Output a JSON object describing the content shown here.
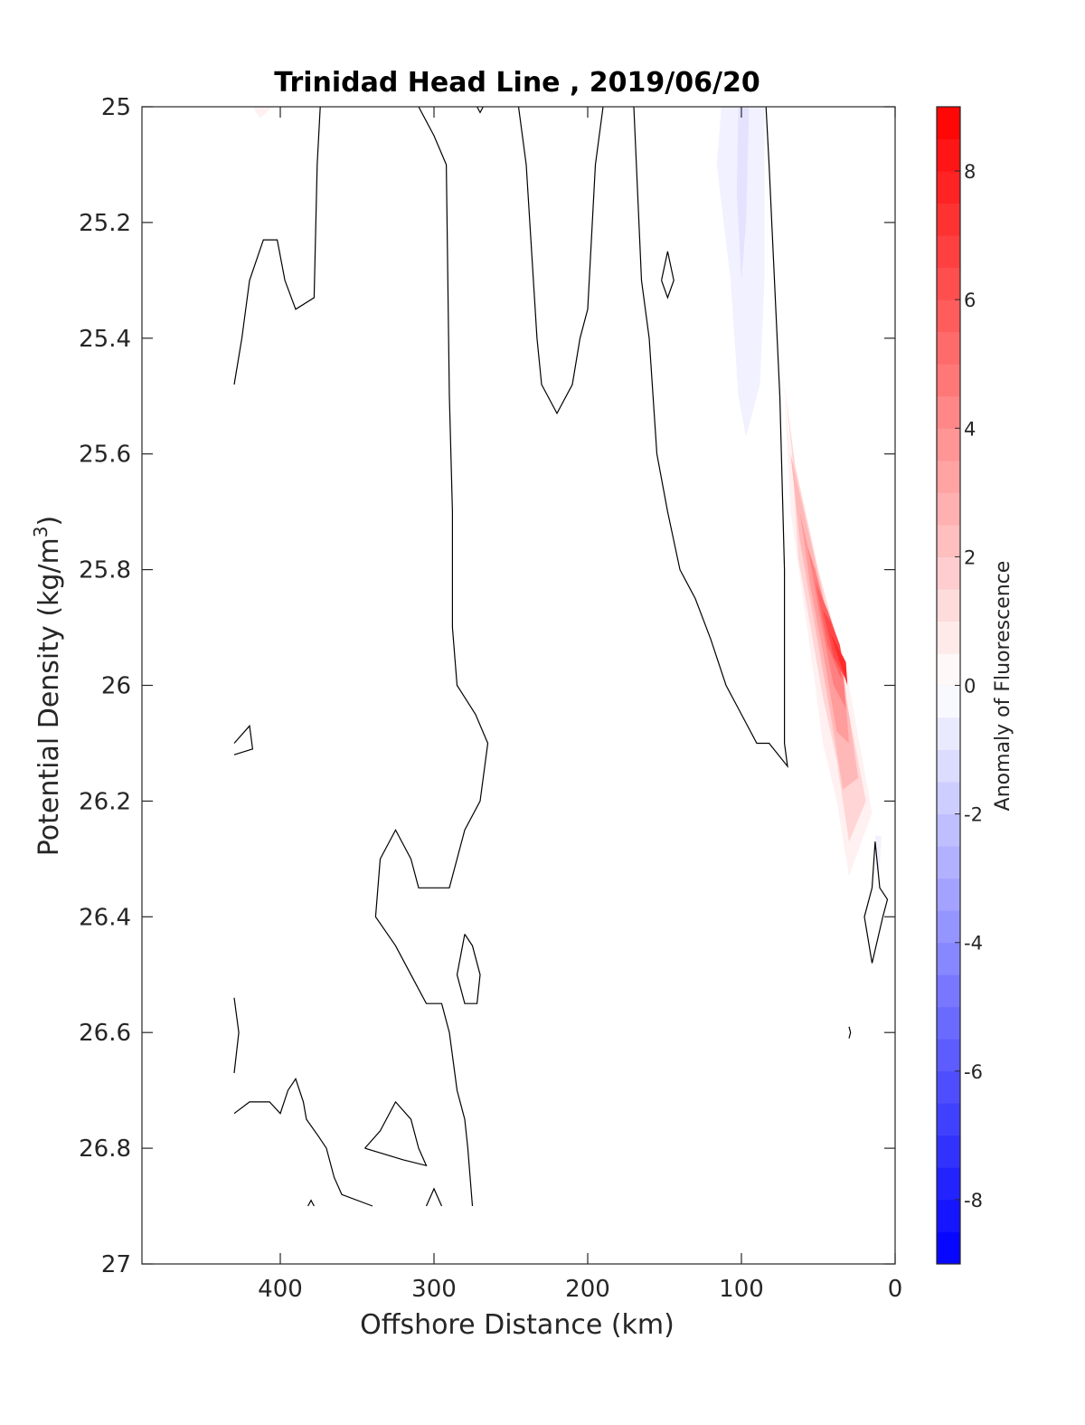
{
  "chart_data": {
    "type": "heatmap",
    "title": "Trinidad Head Line , 2019/06/20",
    "xlabel": "Offshore Distance (km)",
    "ylabel": "Potential Density (kg/m³)",
    "ylabel_main": "Potential Density (kg/m",
    "ylabel_sup": "3",
    "ylabel_close": ")",
    "xlim": [
      490,
      0
    ],
    "x_reversed": true,
    "ylim": [
      25,
      27
    ],
    "y_reversed": true,
    "x_ticks": [
      400,
      300,
      200,
      100,
      0
    ],
    "x_tick_labels": [
      "400",
      "300",
      "200",
      "100",
      "0"
    ],
    "y_ticks": [
      25,
      25.2,
      25.4,
      25.6,
      25.8,
      26,
      26.2,
      26.4,
      26.6,
      26.8,
      27
    ],
    "y_tick_labels": [
      "25",
      "25.2",
      "25.4",
      "25.6",
      "25.8",
      "26",
      "26.2",
      "26.4",
      "26.6",
      "26.8",
      "27"
    ],
    "colorbar": {
      "label": "Anomaly of Fluorescence",
      "range": [
        -9,
        9
      ],
      "step": 0.5,
      "ticks": [
        -8,
        -6,
        -4,
        -2,
        0,
        2,
        4,
        6,
        8
      ],
      "tick_labels": [
        "-8",
        "-6",
        "-4",
        "-2",
        "0",
        "2",
        "4",
        "6",
        "8"
      ],
      "colormap": "blue-white-red",
      "neg_color": "#0000ff",
      "pos_color": "#ff0000",
      "zero_color": "#ffffff"
    },
    "grid": false,
    "filled_regions": [
      {
        "level": 0.5,
        "points": [
          [
            418,
            25
          ],
          [
            405,
            25
          ],
          [
            413,
            25.02
          ]
        ]
      },
      {
        "level": -0.5,
        "points": [
          [
            113,
            25
          ],
          [
            85,
            25
          ],
          [
            85,
            25.3
          ],
          [
            88,
            25.48
          ],
          [
            97,
            25.57
          ],
          [
            102,
            25.5
          ],
          [
            107,
            25.3
          ],
          [
            116,
            25.1
          ]
        ]
      },
      {
        "level": -1.0,
        "points": [
          [
            102,
            25
          ],
          [
            95,
            25
          ],
          [
            97,
            25.2
          ],
          [
            100,
            25.3
          ],
          [
            103,
            25.15
          ]
        ]
      },
      {
        "level": 0.5,
        "points": [
          [
            78,
            25.33
          ],
          [
            72,
            25.5
          ],
          [
            68,
            25.7
          ],
          [
            60,
            25.85
          ],
          [
            52,
            26.0
          ],
          [
            47,
            26.1
          ],
          [
            38,
            26.2
          ],
          [
            30,
            26.33
          ],
          [
            15,
            26.22
          ],
          [
            30,
            26.0
          ],
          [
            33,
            25.95
          ],
          [
            48,
            25.85
          ],
          [
            63,
            25.67
          ],
          [
            70,
            25.55
          ]
        ]
      },
      {
        "level": 1.5,
        "points": [
          [
            72,
            25.48
          ],
          [
            67,
            25.6
          ],
          [
            63,
            25.78
          ],
          [
            55,
            25.9
          ],
          [
            47,
            26.02
          ],
          [
            38,
            26.13
          ],
          [
            30,
            26.27
          ],
          [
            19,
            26.2
          ],
          [
            30,
            26.05
          ],
          [
            35,
            25.95
          ],
          [
            50,
            25.8
          ],
          [
            65,
            25.62
          ]
        ]
      },
      {
        "level": 2.5,
        "points": [
          [
            68,
            25.6
          ],
          [
            62,
            25.75
          ],
          [
            52,
            25.9
          ],
          [
            42,
            26.05
          ],
          [
            34,
            26.18
          ],
          [
            24,
            26.16
          ],
          [
            30,
            26.05
          ],
          [
            38,
            25.95
          ],
          [
            55,
            25.75
          ]
        ]
      },
      {
        "level": 3.5,
        "points": [
          [
            62,
            25.7
          ],
          [
            55,
            25.83
          ],
          [
            45,
            25.97
          ],
          [
            38,
            26.08
          ],
          [
            30,
            26.1
          ],
          [
            33,
            26.0
          ],
          [
            45,
            25.88
          ],
          [
            55,
            25.78
          ]
        ]
      },
      {
        "level": 4.5,
        "points": [
          [
            57,
            25.76
          ],
          [
            49,
            25.88
          ],
          [
            40,
            26.0
          ],
          [
            32,
            26.04
          ],
          [
            34,
            25.97
          ],
          [
            45,
            25.87
          ],
          [
            52,
            25.8
          ]
        ]
      },
      {
        "level": 5.5,
        "points": [
          [
            52,
            25.82
          ],
          [
            44,
            25.93
          ],
          [
            35,
            25.99
          ],
          [
            36,
            25.93
          ],
          [
            44,
            25.87
          ]
        ]
      },
      {
        "level": 6.5,
        "points": [
          [
            47,
            25.87
          ],
          [
            40,
            25.95
          ],
          [
            32,
            25.99
          ],
          [
            36,
            25.93
          ],
          [
            42,
            25.89
          ]
        ]
      },
      {
        "level": 7.5,
        "points": [
          [
            42,
            25.91
          ],
          [
            36,
            25.96
          ],
          [
            31,
            26.0
          ],
          [
            32,
            25.96
          ]
        ]
      },
      {
        "level": -0.5,
        "points": [
          [
            13,
            26.26
          ],
          [
            9,
            26.26
          ],
          [
            10,
            26.32
          ],
          [
            12,
            26.32
          ]
        ]
      }
    ],
    "contour_lines": [
      {
        "level": 0,
        "points": [
          [
            430,
            25.48
          ],
          [
            425,
            25.4
          ],
          [
            420,
            25.3
          ],
          [
            411,
            25.23
          ],
          [
            402,
            25.23
          ],
          [
            397,
            25.3
          ],
          [
            390,
            25.35
          ],
          [
            378,
            25.33
          ],
          [
            376,
            25.1
          ],
          [
            374,
            25
          ]
        ]
      },
      {
        "level": 0,
        "points": [
          [
            310,
            25
          ],
          [
            300,
            25.05
          ],
          [
            292,
            25.1
          ],
          [
            290,
            25.5
          ],
          [
            288,
            25.7
          ],
          [
            288,
            25.9
          ],
          [
            285,
            26
          ],
          [
            273,
            26.05
          ],
          [
            265,
            26.1
          ],
          [
            270,
            26.2
          ],
          [
            280,
            26.25
          ],
          [
            290,
            26.35
          ],
          [
            310,
            26.35
          ],
          [
            315,
            26.3
          ],
          [
            325,
            26.25
          ],
          [
            335,
            26.3
          ],
          [
            338,
            26.4
          ],
          [
            325,
            26.45
          ],
          [
            315,
            26.5
          ],
          [
            305,
            26.55
          ],
          [
            295,
            26.55
          ],
          [
            290,
            26.6
          ],
          [
            285,
            26.7
          ],
          [
            280,
            26.75
          ],
          [
            278,
            26.8
          ],
          [
            275,
            26.9
          ]
        ]
      },
      {
        "level": 0,
        "points": [
          [
            272,
            25
          ],
          [
            270,
            25.01
          ],
          [
            268,
            25
          ]
        ]
      },
      {
        "level": 0,
        "points": [
          [
            245,
            25
          ],
          [
            240,
            25.1
          ],
          [
            233,
            25.4
          ],
          [
            230,
            25.48
          ],
          [
            220,
            25.53
          ],
          [
            210,
            25.48
          ],
          [
            205,
            25.4
          ],
          [
            200,
            25.35
          ],
          [
            195,
            25.1
          ],
          [
            190,
            25
          ]
        ]
      },
      {
        "level": 0,
        "points": [
          [
            170,
            25
          ],
          [
            165,
            25.3
          ],
          [
            160,
            25.4
          ],
          [
            155,
            25.6
          ],
          [
            148,
            25.7
          ],
          [
            140,
            25.8
          ],
          [
            130,
            25.85
          ],
          [
            120,
            25.92
          ],
          [
            110,
            26.0
          ],
          [
            100,
            26.05
          ],
          [
            90,
            26.1
          ],
          [
            82,
            26.1
          ],
          [
            70,
            26.14
          ],
          [
            72,
            26.1
          ],
          [
            72,
            25.8
          ],
          [
            75,
            25.5
          ],
          [
            82,
            25.1
          ],
          [
            84,
            25
          ]
        ]
      },
      {
        "level": 0,
        "points": [
          [
            152,
            25.3
          ],
          [
            148,
            25.25
          ],
          [
            144,
            25.3
          ],
          [
            148,
            25.33
          ],
          [
            152,
            25.3
          ]
        ]
      },
      {
        "level": 0,
        "points": [
          [
            430,
            26.1
          ],
          [
            420,
            26.07
          ],
          [
            418,
            26.11
          ],
          [
            430,
            26.12
          ]
        ]
      },
      {
        "level": 0,
        "points": [
          [
            430,
            26.54
          ],
          [
            427,
            26.6
          ],
          [
            430,
            26.67
          ]
        ]
      },
      {
        "level": 0,
        "points": [
          [
            430,
            26.74
          ],
          [
            420,
            26.72
          ],
          [
            407,
            26.72
          ],
          [
            400,
            26.74
          ],
          [
            395,
            26.7
          ],
          [
            390,
            26.68
          ],
          [
            385,
            26.72
          ],
          [
            383,
            26.75
          ],
          [
            375,
            26.78
          ],
          [
            370,
            26.8
          ],
          [
            365,
            26.85
          ],
          [
            360,
            26.88
          ],
          [
            340,
            26.9
          ]
        ]
      },
      {
        "level": 0,
        "points": [
          [
            280,
            26.43
          ],
          [
            275,
            26.45
          ],
          [
            270,
            26.5
          ],
          [
            272,
            26.55
          ],
          [
            280,
            26.55
          ],
          [
            285,
            26.5
          ],
          [
            280,
            26.43
          ]
        ]
      },
      {
        "level": 0,
        "points": [
          [
            345,
            26.8
          ],
          [
            335,
            26.77
          ],
          [
            325,
            26.72
          ],
          [
            315,
            26.75
          ],
          [
            310,
            26.8
          ],
          [
            305,
            26.83
          ],
          [
            320,
            26.82
          ],
          [
            345,
            26.8
          ]
        ]
      },
      {
        "level": 0,
        "points": [
          [
            382,
            26.9
          ],
          [
            380,
            26.89
          ],
          [
            378,
            26.9
          ]
        ]
      },
      {
        "level": 0,
        "points": [
          [
            305,
            26.9
          ],
          [
            300,
            26.87
          ],
          [
            295,
            26.9
          ]
        ]
      },
      {
        "level": 0,
        "points": [
          [
            13,
            26.27
          ],
          [
            10,
            26.35
          ],
          [
            5,
            26.37
          ],
          [
            8,
            26.4
          ],
          [
            15,
            26.48
          ],
          [
            20,
            26.4
          ],
          [
            15,
            26.35
          ],
          [
            13,
            26.27
          ]
        ]
      },
      {
        "level": 0,
        "points": [
          [
            30,
            26.59
          ],
          [
            29,
            26.6
          ],
          [
            30,
            26.61
          ]
        ]
      }
    ]
  }
}
